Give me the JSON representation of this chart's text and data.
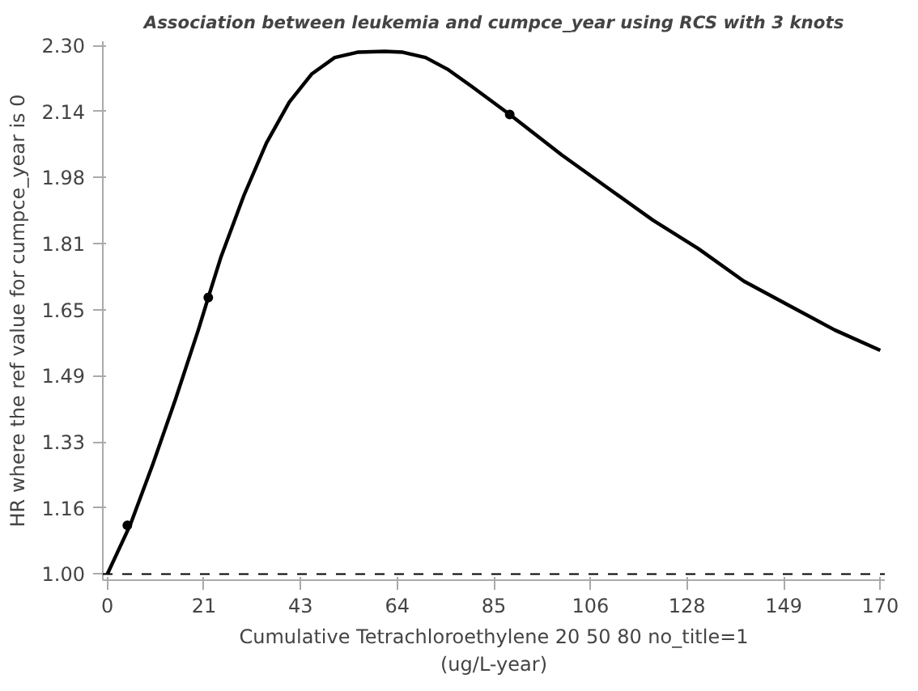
{
  "chart_data": {
    "type": "line",
    "title": "Association between leukemia and cumpce_year using RCS with 3 knots",
    "xlabel": "Cumulative Tetrachloroethylene 20 50 80 no_title=1\n(ug/L-year)",
    "ylabel": "HR where the ref value for cumpce_year is 0",
    "series": [
      {
        "color": "#000000",
        "x": [
          0,
          5,
          10,
          15,
          20,
          22.2,
          25,
          30,
          35,
          40,
          45,
          50,
          55,
          61,
          65,
          70,
          75,
          80,
          88.5,
          100,
          110,
          120,
          130,
          140,
          150,
          160,
          170
        ],
        "values": [
          1.0,
          1.12,
          1.27,
          1.43,
          1.6,
          1.68,
          1.78,
          1.93,
          2.06,
          2.16,
          2.23,
          2.27,
          2.283,
          2.285,
          2.283,
          2.27,
          2.24,
          2.2,
          2.13,
          2.03,
          1.95,
          1.87,
          1.8,
          1.72,
          1.66,
          1.6,
          1.55
        ]
      },
      {
        "type": "scatter",
        "color": "#000000",
        "marker": "circle",
        "x": [
          4.4,
          22.2,
          88.5
        ],
        "values": [
          1.12,
          1.68,
          2.13
        ]
      }
    ],
    "xlim": [
      -1,
      171
    ],
    "ylim": [
      0.985,
      2.31
    ],
    "xticks": [
      0,
      {
        "value": 21.25,
        "label": "21"
      },
      {
        "value": 42.5,
        "label": "43"
      },
      {
        "value": 63.75,
        "label": "64"
      },
      85,
      {
        "value": 106.25,
        "label": "106"
      },
      {
        "value": 127.5,
        "label": "128"
      },
      {
        "value": 148.75,
        "label": "149"
      },
      170
    ],
    "yticks": [
      {
        "value": 1.0,
        "label": "1.00"
      },
      {
        "value": 1.1625,
        "label": "1.16"
      },
      {
        "value": 1.325,
        "label": "1.33"
      },
      {
        "value": 1.4875,
        "label": "1.49"
      },
      {
        "value": 1.65,
        "label": "1.65"
      },
      {
        "value": 1.8125,
        "label": "1.81"
      },
      {
        "value": 1.975,
        "label": "1.98"
      },
      {
        "value": 2.1375,
        "label": "2.14"
      },
      {
        "value": 2.3,
        "label": "2.30"
      }
    ],
    "ref_lines": [
      {
        "axis": "y",
        "value": 1.0,
        "line_style": "dashed",
        "color": "#000000"
      }
    ],
    "grid": false,
    "line_style": "solid"
  }
}
